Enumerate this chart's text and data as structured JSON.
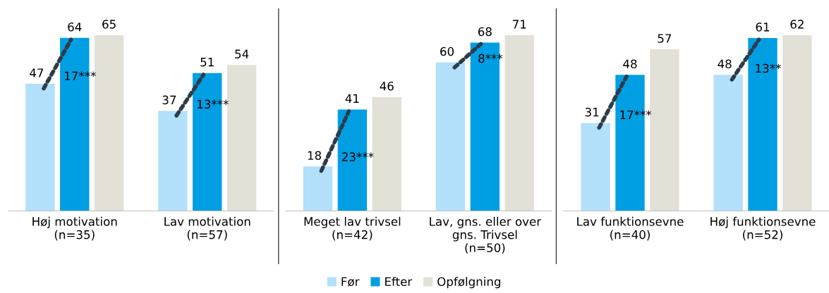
{
  "chart_data": [
    {
      "type": "bar",
      "categories": [
        "Høj motivation\n(n=35)",
        "Lav motivation\n(n=57)"
      ],
      "tick_labels": "x",
      "data_labels": true,
      "series": [
        {
          "color": "#b3e0fa",
          "values": [
            47,
            37
          ]
        },
        {
          "color": "#009fe3",
          "values": [
            64,
            51
          ]
        },
        {
          "color": "#e3e0d8",
          "values": [
            65,
            54
          ]
        }
      ],
      "annotations": [
        "17***",
        "13***"
      ]
    },
    {
      "type": "bar",
      "categories": [
        "Meget lav trivsel\n(n=42)",
        "Lav, gns. eller over\ngns. Trivsel\n(n=50)"
      ],
      "tick_labels": "x",
      "data_labels": true,
      "series": [
        {
          "color": "#b3e0fa",
          "values": [
            18,
            60
          ]
        },
        {
          "color": "#009fe3",
          "values": [
            41,
            68
          ]
        },
        {
          "color": "#e3e0d8",
          "values": [
            46,
            71
          ]
        }
      ],
      "annotations": [
        "23***",
        "8***"
      ]
    },
    {
      "type": "bar",
      "categories": [
        "Lav funktionsevne\n(n=40)",
        "Høj funktionsevne\n(n=52)"
      ],
      "tick_labels": "x",
      "data_labels": true,
      "legend": "bottom",
      "series": [
        {
          "name": "Før",
          "color": "#b3e0fa",
          "values": [
            31,
            48
          ]
        },
        {
          "name": "Efter",
          "color": "#009fe3",
          "values": [
            48,
            61
          ]
        },
        {
          "name": "Opfølgning",
          "color": "#e3e0d8",
          "values": [
            57,
            62
          ]
        }
      ],
      "annotations": [
        "17***",
        "13**"
      ]
    }
  ]
}
